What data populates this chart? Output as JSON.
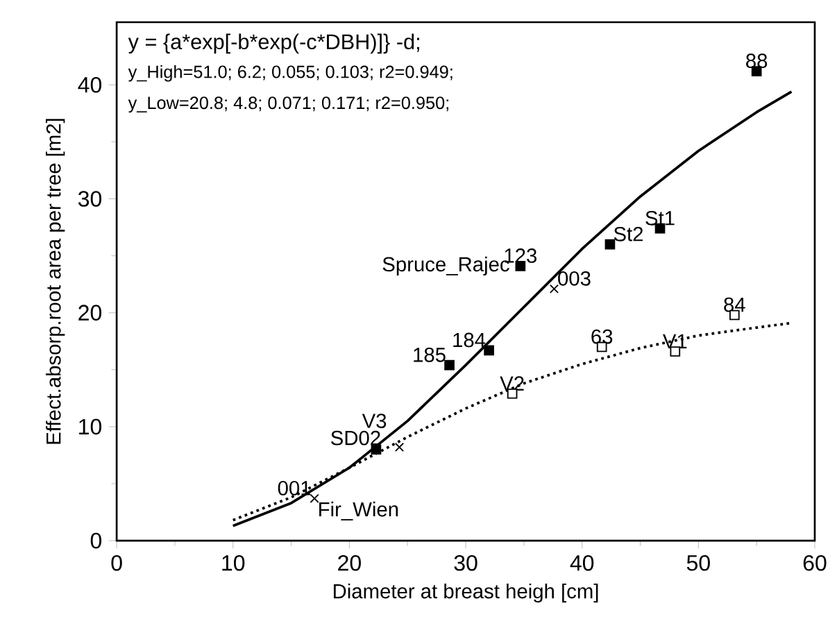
{
  "chart_data": {
    "type": "scatter",
    "xlabel": "Diameter at breast heigh [cm]",
    "ylabel": "Effect.absorp.root area per tree [m2]",
    "xlim": [
      0,
      60
    ],
    "xticks": [
      0,
      10,
      20,
      30,
      40,
      50,
      60
    ],
    "ylim": [
      0,
      45.5
    ],
    "yticks": [
      0,
      10,
      20,
      30,
      40
    ],
    "series": [
      {
        "marker": "square",
        "color": "#000000",
        "x": [
          55.0,
          46.7,
          42.4,
          34.7,
          32.0,
          28.6,
          22.3
        ],
        "values": [
          41.2,
          27.4,
          26.0,
          24.1,
          16.7,
          15.4,
          8.0
        ]
      },
      {
        "marker": "square",
        "color": "#ffffff",
        "x": [
          53.1,
          48.0,
          41.7,
          34.0
        ],
        "values": [
          19.8,
          16.6,
          17.0,
          12.9
        ]
      },
      {
        "marker": "cross",
        "color": "#000000",
        "x": [
          37.6,
          24.3,
          17.0
        ],
        "values": [
          22.1,
          8.2,
          3.7
        ]
      },
      {
        "type": "line",
        "marker": "none",
        "line_style": "solid",
        "color": "#000000",
        "x": [
          10,
          15,
          20,
          25,
          30,
          35,
          40,
          45,
          50,
          55,
          58
        ],
        "values": [
          1.3,
          3.3,
          6.4,
          10.5,
          15.4,
          20.5,
          25.6,
          30.2,
          34.2,
          37.6,
          39.4
        ]
      },
      {
        "type": "line",
        "marker": "none",
        "line_style": "dotted",
        "color": "#000000",
        "x": [
          10,
          15,
          20,
          25,
          30,
          35,
          40,
          45,
          50,
          55,
          58
        ],
        "values": [
          1.8,
          3.8,
          6.4,
          9.1,
          11.6,
          13.8,
          15.5,
          16.9,
          18.0,
          18.7,
          19.1
        ]
      }
    ],
    "annotations": [
      "y = {a*exp[-b*exp(-c*DBH)]} -d;",
      "y_High=51.0; 6.2; 0.055; 0.103; r2=0.949;",
      "y_Low=20.8; 4.8; 0.071; 0.171; r2=0.950;",
      {
        "text": "88",
        "x": 55.0,
        "y": 41.2
      },
      {
        "text": "St1",
        "x": 46.7,
        "y": 27.4
      },
      {
        "text": "St2",
        "x": 42.4,
        "y": 26.0
      },
      {
        "text": "123",
        "x": 34.7,
        "y": 24.1
      },
      {
        "text": "Spruce_Rajec",
        "x": 34.7,
        "y": 24.1
      },
      {
        "text": "003",
        "x": 37.6,
        "y": 22.1
      },
      {
        "text": "184",
        "x": 32.0,
        "y": 16.7
      },
      {
        "text": "185",
        "x": 28.6,
        "y": 15.4
      },
      {
        "text": "84",
        "x": 53.1,
        "y": 19.8
      },
      {
        "text": "V1",
        "x": 48.0,
        "y": 16.6
      },
      {
        "text": "63",
        "x": 41.7,
        "y": 17.0
      },
      {
        "text": "V2",
        "x": 34.0,
        "y": 12.9
      },
      {
        "text": "V3",
        "x": 23.5,
        "y": 9.6
      },
      {
        "text": "SD02",
        "x": 23.0,
        "y": 8.1
      },
      {
        "text": "001",
        "x": 17.0,
        "y": 3.7
      },
      {
        "text": "Fir_Wien",
        "x": 17.0,
        "y": 3.7
      }
    ]
  }
}
